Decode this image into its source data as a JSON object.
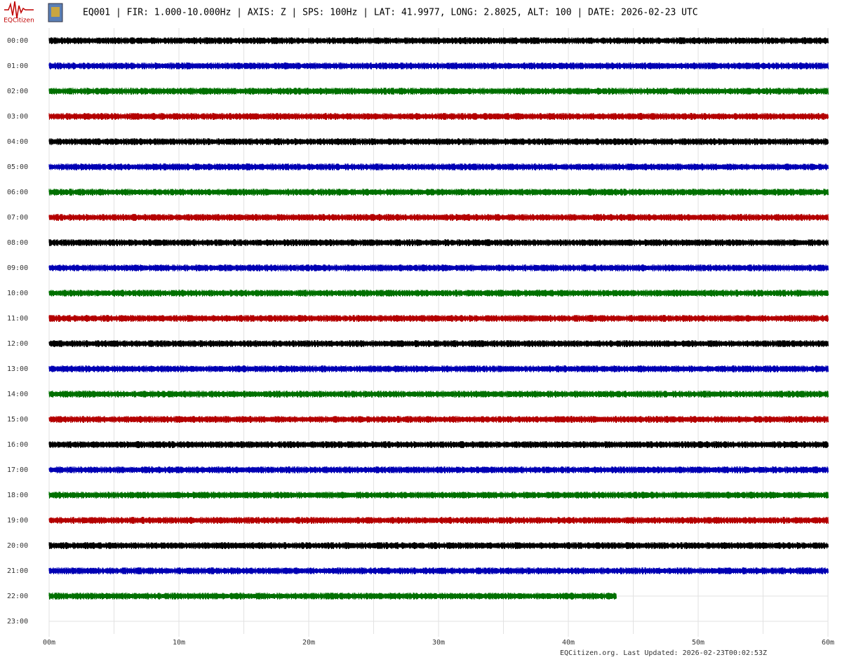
{
  "chart_data": {
    "type": "helicorder",
    "title": "EQ001 | FIR: 1.000-10.000Hz | AXIS: Z | SPS: 100Hz | LAT: 41.9977, LONG: 2.8025, ALT: 100 | DATE: 2026-02-23 UTC",
    "logo_text": "EQCitizen",
    "footer": "EQCitizen.org. Last Updated: 2026-02-23T00:02:53Z",
    "xlim": [
      0,
      60
    ],
    "xticks": [
      {
        "value": 0,
        "label": "00m"
      },
      {
        "value": 10,
        "label": "10m"
      },
      {
        "value": 20,
        "label": "20m"
      },
      {
        "value": 30,
        "label": "30m"
      },
      {
        "value": 40,
        "label": "40m"
      },
      {
        "value": 50,
        "label": "50m"
      },
      {
        "value": 60,
        "label": "60m"
      }
    ],
    "xgrid": [
      0,
      5,
      10,
      15,
      20,
      25,
      30,
      35,
      40,
      45,
      50,
      55,
      60
    ],
    "colors": [
      "#000000",
      "#0000b4",
      "#007000",
      "#b40000"
    ],
    "rows": [
      {
        "label": "00:00",
        "end": 60
      },
      {
        "label": "01:00",
        "end": 60
      },
      {
        "label": "02:00",
        "end": 60
      },
      {
        "label": "03:00",
        "end": 60
      },
      {
        "label": "04:00",
        "end": 60
      },
      {
        "label": "05:00",
        "end": 60
      },
      {
        "label": "06:00",
        "end": 60
      },
      {
        "label": "07:00",
        "end": 60
      },
      {
        "label": "08:00",
        "end": 60
      },
      {
        "label": "09:00",
        "end": 60
      },
      {
        "label": "10:00",
        "end": 60
      },
      {
        "label": "11:00",
        "end": 60
      },
      {
        "label": "12:00",
        "end": 60
      },
      {
        "label": "13:00",
        "end": 60
      },
      {
        "label": "14:00",
        "end": 60
      },
      {
        "label": "15:00",
        "end": 60
      },
      {
        "label": "16:00",
        "end": 60
      },
      {
        "label": "17:00",
        "end": 60
      },
      {
        "label": "18:00",
        "end": 60
      },
      {
        "label": "19:00",
        "end": 60
      },
      {
        "label": "20:00",
        "end": 60
      },
      {
        "label": "21:00",
        "end": 60
      },
      {
        "label": "22:00",
        "end": 43.7
      },
      {
        "label": "23:00",
        "end": null
      }
    ]
  }
}
